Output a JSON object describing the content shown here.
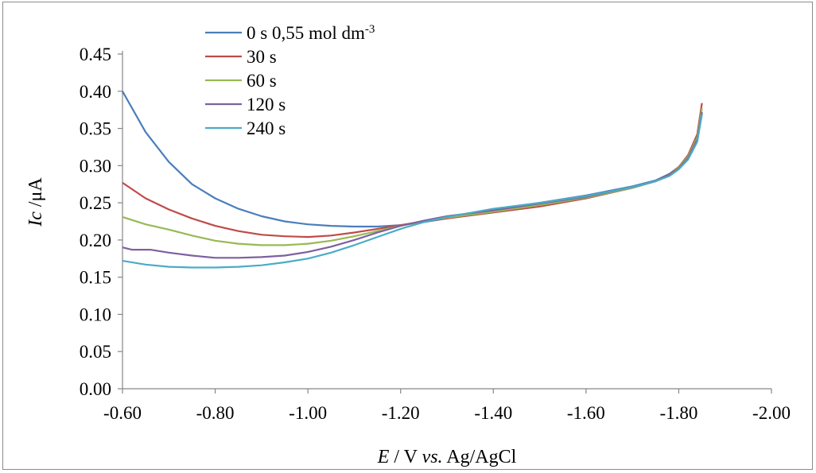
{
  "chart_data": {
    "type": "line",
    "xlabel": {
      "main": "E",
      "rest": " / V ",
      "italic": "vs.",
      "tail": " Ag/AgCl"
    },
    "ylabel": {
      "main": "Ic",
      "rest": " /μA"
    },
    "xlim": [
      -0.6,
      -2.0
    ],
    "ylim": [
      0.0,
      0.45
    ],
    "x_ticks": [
      "-0.60",
      "-0.80",
      "-1.00",
      "-1.20",
      "-1.40",
      "-1.60",
      "-1.80",
      "-2.00"
    ],
    "x_tick_values": [
      -0.6,
      -0.8,
      -1.0,
      -1.2,
      -1.4,
      -1.6,
      -1.8,
      -2.0
    ],
    "y_ticks": [
      "0.00",
      "0.05",
      "0.10",
      "0.15",
      "0.20",
      "0.25",
      "0.30",
      "0.35",
      "0.40",
      "0.45"
    ],
    "y_tick_values": [
      0.0,
      0.05,
      0.1,
      0.15,
      0.2,
      0.25,
      0.3,
      0.35,
      0.4,
      0.45
    ],
    "legend_position": "top-left",
    "series": [
      {
        "name": "0 s 0,55 mol dm",
        "name_sup": "-3",
        "color": "#4a7ebb",
        "x": [
          -0.6,
          -0.65,
          -0.7,
          -0.75,
          -0.8,
          -0.85,
          -0.9,
          -0.95,
          -1.0,
          -1.05,
          -1.1,
          -1.15,
          -1.2,
          -1.25,
          -1.3,
          -1.4,
          -1.5,
          -1.6,
          -1.7,
          -1.75,
          -1.78,
          -1.8,
          -1.82,
          -1.84,
          -1.85
        ],
        "y": [
          0.4,
          0.345,
          0.305,
          0.275,
          0.256,
          0.242,
          0.232,
          0.225,
          0.221,
          0.219,
          0.218,
          0.218,
          0.22,
          0.224,
          0.229,
          0.24,
          0.25,
          0.26,
          0.272,
          0.28,
          0.289,
          0.298,
          0.312,
          0.336,
          0.37
        ]
      },
      {
        "name": "30 s",
        "color": "#be4b48",
        "x": [
          -0.6,
          -0.65,
          -0.7,
          -0.75,
          -0.8,
          -0.85,
          -0.9,
          -0.95,
          -1.0,
          -1.05,
          -1.1,
          -1.15,
          -1.2,
          -1.25,
          -1.3,
          -1.4,
          -1.5,
          -1.6,
          -1.7,
          -1.75,
          -1.78,
          -1.8,
          -1.82,
          -1.84,
          -1.85
        ],
        "y": [
          0.277,
          0.256,
          0.241,
          0.229,
          0.219,
          0.212,
          0.207,
          0.205,
          0.204,
          0.206,
          0.21,
          0.215,
          0.22,
          0.225,
          0.229,
          0.237,
          0.245,
          0.256,
          0.27,
          0.279,
          0.288,
          0.298,
          0.314,
          0.342,
          0.384
        ]
      },
      {
        "name": "60 s",
        "color": "#98b954",
        "x": [
          -0.6,
          -0.65,
          -0.7,
          -0.75,
          -0.8,
          -0.85,
          -0.9,
          -0.95,
          -1.0,
          -1.05,
          -1.1,
          -1.15,
          -1.2,
          -1.25,
          -1.3,
          -1.4,
          -1.5,
          -1.6,
          -1.7,
          -1.75,
          -1.78,
          -1.8,
          -1.82,
          -1.84,
          -1.85
        ],
        "y": [
          0.231,
          0.221,
          0.214,
          0.206,
          0.199,
          0.195,
          0.193,
          0.193,
          0.195,
          0.199,
          0.205,
          0.212,
          0.219,
          0.225,
          0.23,
          0.238,
          0.247,
          0.257,
          0.27,
          0.279,
          0.287,
          0.297,
          0.312,
          0.338,
          0.377
        ]
      },
      {
        "name": "120 s",
        "color": "#7d60a0",
        "x": [
          -0.6,
          -0.62,
          -0.66,
          -0.7,
          -0.75,
          -0.8,
          -0.85,
          -0.9,
          -0.95,
          -1.0,
          -1.05,
          -1.1,
          -1.15,
          -1.2,
          -1.25,
          -1.3,
          -1.4,
          -1.5,
          -1.6,
          -1.7,
          -1.75,
          -1.78,
          -1.8,
          -1.82,
          -1.84,
          -1.85
        ],
        "y": [
          0.19,
          0.187,
          0.187,
          0.183,
          0.179,
          0.176,
          0.176,
          0.177,
          0.179,
          0.184,
          0.191,
          0.2,
          0.21,
          0.219,
          0.226,
          0.232,
          0.24,
          0.249,
          0.258,
          0.271,
          0.279,
          0.287,
          0.296,
          0.31,
          0.335,
          0.372
        ]
      },
      {
        "name": "240 s",
        "color": "#4bacc6",
        "x": [
          -0.6,
          -0.65,
          -0.7,
          -0.75,
          -0.8,
          -0.85,
          -0.9,
          -0.95,
          -1.0,
          -1.05,
          -1.1,
          -1.15,
          -1.2,
          -1.25,
          -1.3,
          -1.4,
          -1.5,
          -1.6,
          -1.7,
          -1.75,
          -1.78,
          -1.8,
          -1.82,
          -1.84,
          -1.85
        ],
        "y": [
          0.172,
          0.167,
          0.164,
          0.163,
          0.163,
          0.164,
          0.166,
          0.17,
          0.175,
          0.183,
          0.193,
          0.204,
          0.215,
          0.224,
          0.231,
          0.242,
          0.25,
          0.259,
          0.271,
          0.279,
          0.286,
          0.295,
          0.308,
          0.332,
          0.369
        ]
      }
    ]
  }
}
